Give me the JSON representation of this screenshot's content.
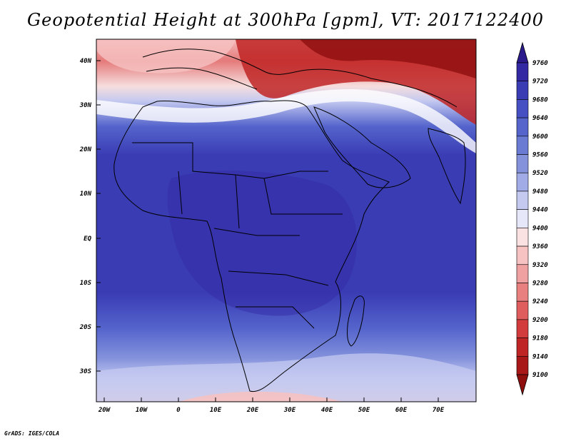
{
  "title": "Geopotential Height at 300hPa [gpm], VT: 2017122400",
  "credit": "GrADS: IGES/COLA",
  "map": {
    "lat_labels": [
      "40N",
      "30N",
      "20N",
      "10N",
      "EQ",
      "10S",
      "20S",
      "30S"
    ],
    "lon_labels": [
      "20W",
      "10W",
      "0",
      "10E",
      "20E",
      "30E",
      "40E",
      "50E",
      "60E",
      "70E"
    ]
  },
  "colorbar": {
    "levels": [
      9760,
      9720,
      9680,
      9640,
      9600,
      9560,
      9520,
      9480,
      9440,
      9400,
      9360,
      9320,
      9280,
      9240,
      9200,
      9180,
      9140,
      9100
    ],
    "colors": [
      "#2a1a8c",
      "#3229a3",
      "#3a3cb4",
      "#4650c3",
      "#5565cc",
      "#6a7bd3",
      "#8492dc",
      "#a1abe6",
      "#c4c9f0",
      "#e6e8fa",
      "#fbe2e2",
      "#f6c2c2",
      "#efa1a1",
      "#e88080",
      "#df5d5d",
      "#d33c3c",
      "#c02525",
      "#a81818",
      "#8f0f0f"
    ]
  }
}
